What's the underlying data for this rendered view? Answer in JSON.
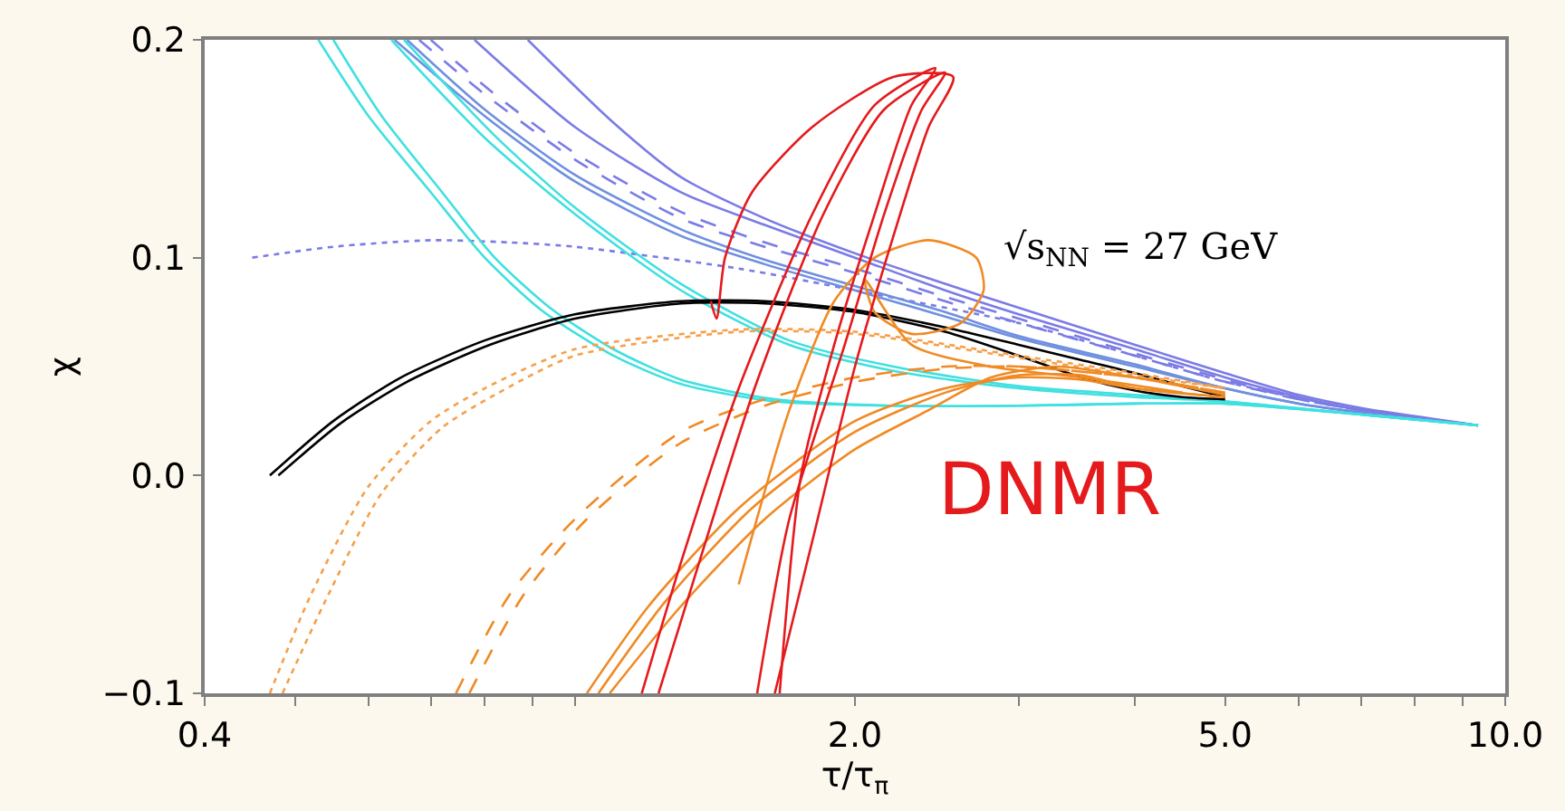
{
  "chart_data": {
    "type": "line",
    "xlabel": "τ/τ$_{π}$",
    "ylabel": "χ",
    "log": "x",
    "marker": "none",
    "xlim": [
      0.4,
      10.0
    ],
    "ylim": [
      -0.1,
      0.2
    ],
    "xticks": [
      0.4,
      {
        "value": 0.5,
        "label": null
      },
      {
        "value": 0.6,
        "label": null
      },
      {
        "value": 0.7,
        "label": null
      },
      {
        "value": 0.8,
        "label": null
      },
      {
        "value": 0.9,
        "label": null
      },
      {
        "value": 1,
        "label": null
      },
      {
        "value": 2,
        "label": "2.0"
      },
      {
        "value": 3,
        "label": null
      },
      {
        "value": 4,
        "label": null
      },
      {
        "value": 5,
        "label": "5.0"
      },
      {
        "value": 6,
        "label": null
      },
      {
        "value": 7,
        "label": null
      },
      {
        "value": 8,
        "label": null
      },
      {
        "value": 9,
        "label": null
      },
      {
        "value": 10,
        "label": "10.0"
      }
    ],
    "yticks": [
      {
        "value": -0.1,
        "label": "−0.1"
      },
      {
        "value": 0,
        "label": "0.0"
      },
      0.1,
      0.2
    ],
    "annotations": [
      "√s$_{NN}$ = 27 GeV",
      "DNMR"
    ],
    "series": [
      {
        "color": "#7b7be6",
        "line_style": "dotted",
        "x": [
          0.45,
          0.55,
          0.7,
          0.85,
          1.0,
          1.5,
          2.0,
          3.0,
          4.0,
          5.0,
          7.0,
          9.35
        ],
        "values": [
          0.1,
          0.105,
          0.108,
          0.107,
          0.105,
          0.095,
          0.085,
          0.07,
          0.055,
          0.043,
          0.03,
          0.023
        ]
      },
      {
        "color": "#7b7be6",
        "line_style": "solid",
        "x": [
          0.78,
          1.0,
          1.3,
          1.6,
          2.0,
          2.5,
          3.0,
          4.0,
          5.0,
          6.0,
          7.0,
          9.35
        ],
        "values": [
          0.2,
          0.16,
          0.13,
          0.115,
          0.1,
          0.085,
          0.074,
          0.058,
          0.045,
          0.036,
          0.03,
          0.023
        ]
      },
      {
        "color": "#7b7be6",
        "line_style": "solid",
        "x": [
          0.89,
          1.1,
          1.3,
          1.6,
          2.0,
          2.5,
          3.0,
          4.0,
          5.0,
          6.0,
          7.0,
          9.35
        ],
        "values": [
          0.2,
          0.162,
          0.137,
          0.118,
          0.102,
          0.088,
          0.077,
          0.06,
          0.047,
          0.037,
          0.031,
          0.023
        ]
      },
      {
        "color": "#7b7be6",
        "line_style": "dashed",
        "x": [
          0.68,
          0.8,
          1.0,
          1.3,
          1.6,
          2.0,
          2.5,
          3.0,
          4.0,
          5.0,
          6.0,
          7.0,
          9.35
        ],
        "values": [
          0.2,
          0.175,
          0.145,
          0.118,
          0.105,
          0.093,
          0.08,
          0.07,
          0.055,
          0.043,
          0.035,
          0.03,
          0.023
        ]
      },
      {
        "color": "#7b7be6",
        "line_style": "dashed",
        "x": [
          0.7,
          0.82,
          1.0,
          1.3,
          1.6,
          2.0,
          2.5,
          3.0,
          4.0,
          5.0,
          6.0,
          7.0,
          9.35
        ],
        "values": [
          0.2,
          0.175,
          0.148,
          0.121,
          0.107,
          0.095,
          0.082,
          0.072,
          0.056,
          0.044,
          0.035,
          0.03,
          0.023
        ]
      },
      {
        "color": "#6f8fe0",
        "line_style": "solid",
        "x": [
          0.64,
          0.8,
          1.0,
          1.3,
          1.6,
          2.0,
          2.5,
          3.0,
          4.0,
          5.0,
          6.0,
          7.0,
          9.35
        ],
        "values": [
          0.2,
          0.165,
          0.135,
          0.11,
          0.097,
          0.085,
          0.073,
          0.063,
          0.05,
          0.04,
          0.033,
          0.029,
          0.023
        ]
      },
      {
        "color": "#6f8fe0",
        "line_style": "solid",
        "x": [
          0.66,
          0.8,
          1.0,
          1.3,
          1.6,
          2.0,
          2.5,
          3.0,
          4.0,
          5.0,
          6.0,
          7.0,
          9.35
        ],
        "values": [
          0.2,
          0.168,
          0.138,
          0.113,
          0.099,
          0.087,
          0.075,
          0.064,
          0.051,
          0.04,
          0.033,
          0.029,
          0.023
        ]
      },
      {
        "color": "#40e0e0",
        "line_style": "solid",
        "x": [
          0.53,
          0.6,
          0.7,
          0.8,
          0.92,
          1.1,
          1.3,
          1.64,
          2.2,
          3.0,
          4.0,
          5.0,
          7.0,
          9.35
        ],
        "values": [
          0.2,
          0.165,
          0.13,
          0.1,
          0.076,
          0.055,
          0.042,
          0.034,
          0.032,
          0.032,
          0.033,
          0.033,
          0.028,
          0.023
        ]
      },
      {
        "color": "#40e0e0",
        "line_style": "solid",
        "x": [
          0.55,
          0.62,
          0.72,
          0.82,
          0.94,
          1.1,
          1.3,
          1.64,
          2.2,
          3.0,
          4.0,
          5.0,
          7.0,
          9.35
        ],
        "values": [
          0.2,
          0.165,
          0.13,
          0.1,
          0.077,
          0.058,
          0.044,
          0.035,
          0.032,
          0.032,
          0.033,
          0.033,
          0.028,
          0.023
        ]
      },
      {
        "color": "#40e0e0",
        "line_style": "solid",
        "x": [
          0.635,
          0.8,
          1.0,
          1.3,
          1.7,
          2.2,
          3.0,
          4.0,
          5.0,
          7.0,
          9.35
        ],
        "values": [
          0.2,
          0.155,
          0.12,
          0.085,
          0.06,
          0.048,
          0.04,
          0.036,
          0.034,
          0.028,
          0.023
        ]
      },
      {
        "color": "#40e0e0",
        "line_style": "solid",
        "x": [
          0.655,
          0.82,
          1.0,
          1.3,
          1.7,
          2.2,
          3.0,
          4.0,
          5.0,
          7.0,
          9.35
        ],
        "values": [
          0.2,
          0.156,
          0.123,
          0.088,
          0.062,
          0.05,
          0.041,
          0.037,
          0.034,
          0.028,
          0.023
        ]
      },
      {
        "color": "#000000",
        "line_style": "solid",
        "x": [
          0.47,
          0.55,
          0.65,
          0.8,
          1.0,
          1.3,
          1.6,
          2.0,
          2.5,
          3.0,
          3.5,
          4.0,
          4.5,
          5.0
        ],
        "values": [
          0.0,
          0.025,
          0.045,
          0.062,
          0.074,
          0.08,
          0.08,
          0.076,
          0.068,
          0.06,
          0.053,
          0.047,
          0.041,
          0.036
        ]
      },
      {
        "color": "#000000",
        "line_style": "solid",
        "x": [
          0.48,
          0.56,
          0.66,
          0.81,
          1.0,
          1.3,
          1.6,
          2.0,
          2.5,
          3.0,
          3.5,
          4.0,
          4.5,
          5.0
        ],
        "values": [
          0.0,
          0.024,
          0.043,
          0.06,
          0.072,
          0.079,
          0.079,
          0.075,
          0.066,
          0.055,
          0.045,
          0.039,
          0.036,
          0.035
        ]
      },
      {
        "color": "#f5a04a",
        "line_style": "dotted",
        "x": [
          0.47,
          0.52,
          0.6,
          0.7,
          0.8,
          1.0,
          1.5,
          2.0,
          3.0,
          4.0,
          5.0
        ],
        "values": [
          -0.1,
          -0.055,
          -0.005,
          0.025,
          0.04,
          0.058,
          0.067,
          0.066,
          0.055,
          0.047,
          0.04
        ]
      },
      {
        "color": "#f5a04a",
        "line_style": "dotted",
        "x": [
          0.485,
          0.54,
          0.62,
          0.72,
          0.82,
          1.0,
          1.5,
          2.0,
          3.0,
          4.0,
          5.0
        ],
        "values": [
          -0.1,
          -0.057,
          -0.008,
          0.022,
          0.037,
          0.055,
          0.066,
          0.065,
          0.054,
          0.046,
          0.04
        ]
      },
      {
        "color": "#f08a24",
        "line_style": "dashed",
        "x": [
          0.745,
          0.85,
          1.0,
          1.3,
          1.6,
          2.0,
          2.5,
          3.0,
          4.0,
          5.0
        ],
        "values": [
          -0.1,
          -0.055,
          -0.02,
          0.02,
          0.035,
          0.045,
          0.05,
          0.05,
          0.045,
          0.038
        ]
      },
      {
        "color": "#f08a24",
        "line_style": "dashed",
        "x": [
          0.77,
          0.88,
          1.03,
          1.3,
          1.6,
          2.0,
          2.5,
          3.0,
          4.0,
          5.0
        ],
        "values": [
          -0.1,
          -0.055,
          -0.02,
          0.015,
          0.032,
          0.043,
          0.049,
          0.05,
          0.045,
          0.038
        ]
      },
      {
        "color": "#f08a24",
        "line_style": "solid",
        "x": [
          1.03,
          1.2,
          1.5,
          2.0,
          2.5,
          3.0,
          3.5,
          4.0,
          5.0
        ],
        "values": [
          -0.1,
          -0.06,
          -0.015,
          0.025,
          0.04,
          0.045,
          0.044,
          0.04,
          0.036
        ]
      },
      {
        "color": "#f08a24",
        "line_style": "solid",
        "x": [
          1.06,
          1.25,
          1.55,
          2.0,
          2.5,
          3.0,
          3.5,
          4.0,
          5.0
        ],
        "values": [
          -0.1,
          -0.058,
          -0.015,
          0.02,
          0.038,
          0.046,
          0.046,
          0.04,
          0.036
        ]
      },
      {
        "color": "#f08a24",
        "line_style": "solid",
        "x": [
          1.09,
          1.3,
          1.6,
          2.0,
          2.4,
          2.8,
          3.3,
          4.0,
          5.0
        ],
        "values": [
          -0.1,
          -0.06,
          -0.02,
          0.012,
          0.03,
          0.045,
          0.05,
          0.045,
          0.037
        ]
      },
      {
        "color": "#f08a24",
        "line_style": "solid",
        "x": [
          1.5,
          1.7,
          1.9,
          2.1,
          2.4,
          2.7,
          2.75,
          2.6,
          2.3,
          2.1,
          2.05,
          2.3,
          2.8,
          3.5,
          4.5
        ],
        "values": [
          -0.05,
          0.03,
          0.08,
          0.1,
          0.108,
          0.1,
          0.085,
          0.07,
          0.065,
          0.075,
          0.09,
          0.06,
          0.05,
          0.045,
          0.038
        ]
      },
      {
        "color": "#e41a1c",
        "line_style": "solid",
        "x": [
          1.18,
          1.3,
          1.5,
          1.8,
          2.1,
          2.44,
          2.3,
          2.1,
          1.9,
          1.75,
          1.66
        ],
        "values": [
          -0.1,
          -0.04,
          0.04,
          0.12,
          0.17,
          0.187,
          0.17,
          0.12,
          0.06,
          0.0,
          -0.1
        ]
      },
      {
        "color": "#e41a1c",
        "line_style": "solid",
        "x": [
          1.23,
          1.36,
          1.56,
          1.85,
          2.15,
          2.5,
          2.36,
          2.15,
          1.95,
          1.7,
          1.57
        ],
        "values": [
          -0.1,
          -0.04,
          0.04,
          0.12,
          0.168,
          0.185,
          0.168,
          0.12,
          0.06,
          -0.02,
          -0.1
        ]
      },
      {
        "color": "#e41a1c",
        "line_style": "solid",
        "x": [
          1.4,
          1.42,
          1.45,
          1.55,
          1.8,
          2.2,
          2.55,
          2.4,
          2.2,
          2.0,
          1.8,
          1.64
        ],
        "values": [
          0.08,
          0.072,
          0.1,
          0.13,
          0.16,
          0.183,
          0.183,
          0.16,
          0.11,
          0.05,
          -0.03,
          -0.1
        ]
      }
    ]
  }
}
